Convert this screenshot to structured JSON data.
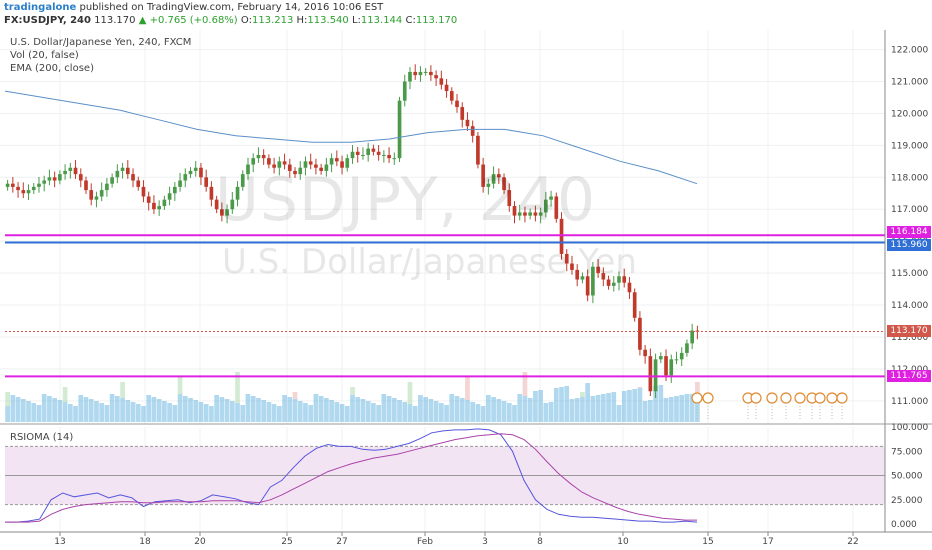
{
  "header": {
    "author": "tradingalone",
    "published": "published on TradingView.com, February 14, 2016 10:06 EST",
    "symbol": "FX:USDJPY",
    "interval": "240",
    "last": "113.170",
    "change": "▲ +0.765 (+0.68%)",
    "o_label": "O:",
    "o": "113.213",
    "h_label": "H:",
    "h": "113.540",
    "l_label": "L:",
    "l": "113.144",
    "c_label": "C:",
    "c": "113.170"
  },
  "legend": {
    "title": "U.S. Dollar/Japanese Yen, 240, FXCM",
    "vol": "Vol (20, false)",
    "ema": "EMA (200, close)",
    "rsi": "RSIOMA (14)"
  },
  "watermark": {
    "line1": "USDJPY, 240",
    "line2": "U.S. Dollar/Japanese Yen"
  },
  "price_boxes": {
    "magenta_high": "116.184",
    "blue": "115.960",
    "last": "113.170",
    "magenta_low": "111.765"
  },
  "colors": {
    "up": "#4a9a4a",
    "down": "#c0392b",
    "ema": "#5b8fc7",
    "magenta": "#e020e0",
    "blue": "#2f6fd6",
    "last_price": "#d0574a",
    "rsi_fast": "#5555dd",
    "rsi_slow": "#aa44aa",
    "rsi_band": "#f3e4f3"
  },
  "chart_data": [
    {
      "type": "candlestick",
      "title": "U.S. Dollar/Japanese Yen, 240, FXCM",
      "ylim": [
        110.4,
        122.3
      ],
      "y_ticks": [
        "122.000",
        "121.000",
        "120.000",
        "119.000",
        "118.000",
        "117.000",
        "116.000",
        "115.000",
        "114.000",
        "113.000",
        "112.000",
        "111.000"
      ],
      "x_ticks": [
        "13",
        "18",
        "20",
        "25",
        "27",
        "Feb",
        "3",
        "8",
        "10",
        "15",
        "17",
        "22"
      ],
      "close_series": [
        117.8,
        117.7,
        117.6,
        117.5,
        117.6,
        117.7,
        117.8,
        117.9,
        118.0,
        117.9,
        118.1,
        118.2,
        118.3,
        118.1,
        117.9,
        117.6,
        117.3,
        117.4,
        117.6,
        117.8,
        118.0,
        118.2,
        118.3,
        118.1,
        117.9,
        117.7,
        117.4,
        117.2,
        117.0,
        117.1,
        117.3,
        117.5,
        117.7,
        117.9,
        118.1,
        118.2,
        118.3,
        118.0,
        117.7,
        117.3,
        117.0,
        116.8,
        117.0,
        117.3,
        117.7,
        118.1,
        118.4,
        118.6,
        118.7,
        118.6,
        118.4,
        118.3,
        118.5,
        118.4,
        118.2,
        118.1,
        118.3,
        118.5,
        118.4,
        118.3,
        118.2,
        118.4,
        118.6,
        118.5,
        118.3,
        118.6,
        118.8,
        118.7,
        118.7,
        118.9,
        118.8,
        118.7,
        118.7,
        118.6,
        118.6,
        120.4,
        121.0,
        121.3,
        121.2,
        121.3,
        121.3,
        121.2,
        121.1,
        120.9,
        120.7,
        120.4,
        120.2,
        119.8,
        119.6,
        119.3,
        118.4,
        117.7,
        117.8,
        118.1,
        118.0,
        117.6,
        117.1,
        116.8,
        116.9,
        116.8,
        116.9,
        116.8,
        116.9,
        117.3,
        117.4,
        116.7,
        115.6,
        115.3,
        115.1,
        114.8,
        114.9,
        114.3,
        115.2,
        115.0,
        114.8,
        114.6,
        114.7,
        114.9,
        114.7,
        114.4,
        113.6,
        112.6,
        112.4,
        111.3,
        112.3,
        112.4,
        111.8,
        112.3,
        112.3,
        112.5,
        112.8,
        113.2,
        113.17
      ],
      "ema_200": [
        120.7,
        120.5,
        120.3,
        120.1,
        119.8,
        119.5,
        119.3,
        119.2,
        119.1,
        119.1,
        119.2,
        119.4,
        119.5,
        119.5,
        119.3,
        118.9,
        118.5,
        118.2,
        117.8
      ],
      "horizontal_levels": [
        116.184,
        115.96,
        113.17,
        111.765
      ]
    },
    {
      "type": "line",
      "title": "RSIOMA (14)",
      "ylim": [
        0,
        100
      ],
      "y_ticks": [
        "100.000",
        "75.000",
        "50.000",
        "25.000",
        "0.000"
      ],
      "band": [
        20,
        80
      ],
      "series": [
        {
          "values": [
            2,
            2,
            3,
            5,
            25,
            32,
            28,
            30,
            32,
            27,
            30,
            27,
            18,
            23,
            24,
            25,
            22,
            24,
            30,
            28,
            26,
            22,
            20,
            38,
            45,
            58,
            70,
            78,
            82,
            80,
            80,
            77,
            76,
            77,
            80,
            83,
            88,
            94,
            96,
            97,
            97,
            98,
            97,
            92,
            75,
            45,
            25,
            15,
            10,
            8,
            7,
            7,
            6,
            5,
            4,
            3,
            3,
            2,
            2,
            3,
            2
          ]
        },
        {
          "values": [
            2,
            2,
            2,
            3,
            10,
            15,
            18,
            20,
            21,
            22,
            23,
            23,
            22,
            22,
            23,
            23,
            23,
            23,
            24,
            24,
            24,
            23,
            22,
            25,
            30,
            36,
            42,
            48,
            54,
            58,
            62,
            65,
            68,
            70,
            72,
            75,
            78,
            81,
            84,
            87,
            89,
            91,
            92,
            93,
            92,
            87,
            77,
            64,
            52,
            42,
            33,
            27,
            22,
            17,
            13,
            10,
            8,
            6,
            5,
            4,
            4
          ]
        }
      ]
    },
    {
      "type": "bar",
      "title": "Vol (20, false)"
    }
  ]
}
